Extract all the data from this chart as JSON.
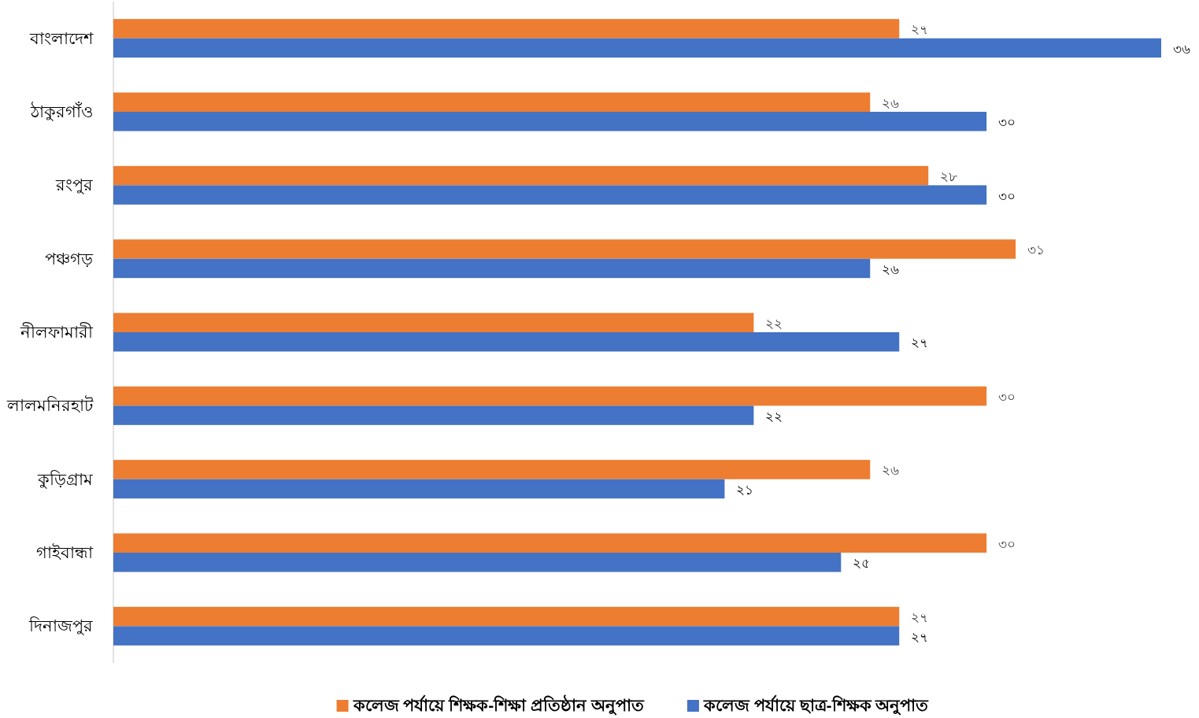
{
  "chart_data": {
    "type": "bar",
    "orientation": "horizontal",
    "categories": [
      "বাংলাদেশ",
      "ঠাকুরগাঁও",
      "রংপুর",
      "পঞ্চগড়",
      "নীলফামারী",
      "লালমনিরহাট",
      "কুড়িগ্রাম",
      "গাইবান্ধা",
      "দিনাজপুর"
    ],
    "series": [
      {
        "name": "কলেজ পর্যায়ে শিক্ষক-শিক্ষা প্রতিষ্ঠান অনুপাত",
        "color": "#ed7d31",
        "values": [
          27,
          26,
          28,
          31,
          22,
          30,
          26,
          30,
          27
        ],
        "value_labels": [
          "২৭",
          "২৬",
          "২৮",
          "৩১",
          "২২",
          "৩০",
          "২৬",
          "৩০",
          "২৭"
        ]
      },
      {
        "name": "কলেজ পর্যায়ে ছাত্র-শিক্ষক অনুপাত",
        "color": "#4472c4",
        "values": [
          36,
          30,
          30,
          26,
          27,
          22,
          21,
          25,
          27
        ],
        "value_labels": [
          "৩৬",
          "৩০",
          "৩০",
          "২৬",
          "২৭",
          "২২",
          "২১",
          "২৫",
          "২৭"
        ]
      }
    ],
    "legend": "bottom"
  }
}
